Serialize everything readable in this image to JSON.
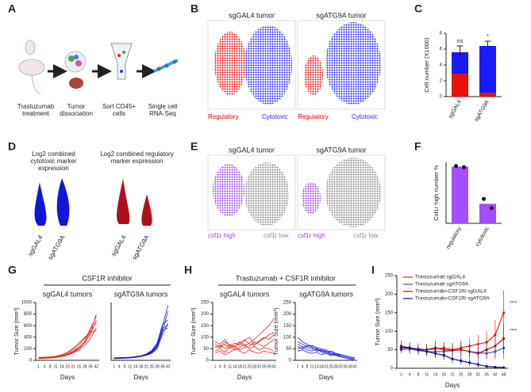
{
  "panel_letters": [
    "A",
    "B",
    "C",
    "D",
    "E",
    "F",
    "G",
    "H",
    "I"
  ],
  "schematic": {
    "steps": [
      "Trastuzumab treatment",
      "Tumor dissociation",
      "Sort CD45+ cells",
      "Single cell RNA-Seq"
    ]
  },
  "tsne_b": {
    "titles": [
      "sgGAL4 tumor",
      "sgATG9A tumor"
    ],
    "labels": [
      "Regulatory",
      "Cytotoxic"
    ]
  },
  "violins": {
    "titles": [
      "Log2 combined cytotoxic marker expression",
      "Log2 combined regulatory marker expression"
    ],
    "categories": [
      "sgGAL4",
      "sgATG9A"
    ]
  },
  "tsne_e": {
    "titles": [
      "sgGAL4 tumor",
      "sgATG9A tumor"
    ],
    "labels": [
      "csf1r high",
      "csf1r low"
    ]
  },
  "group_titles": [
    "CSF1R inhibitor",
    "Trastuzumab + CSF1R inhibitor"
  ],
  "chart_data": [
    {
      "type": "stacked_bar",
      "ylabel": "Cell number (X1000)",
      "categories": [
        "sgGAL4",
        "sgATG9A"
      ],
      "series": [
        {
          "color": "#e8120c",
          "values": [
            2.9,
            0.5
          ]
        },
        {
          "color": "#1a1aff",
          "values": [
            2.7,
            5.9
          ]
        }
      ],
      "errors": [
        0.8,
        0.6
      ],
      "annotations": [
        "ns",
        "*"
      ],
      "ylim": [
        0,
        8
      ],
      "yticks": [
        0,
        2,
        4,
        6,
        8
      ]
    },
    {
      "type": "bar",
      "ylabel": "Csf1r high  number %",
      "categories": [
        "regulatory",
        "cytotoxic"
      ],
      "values": [
        93,
        32
      ],
      "points": [
        [
          94,
          92
        ],
        [
          40,
          25
        ]
      ],
      "color": "#a64dff",
      "ylim": [
        0,
        100
      ]
    },
    {
      "type": "line",
      "title": "sgGAL4 tumors",
      "ylabel": "Tumor Size (mm³)",
      "xlabel": "Days",
      "categories": [
        "1",
        "4",
        "8",
        "11",
        "14",
        "18",
        "21",
        "25",
        "28",
        "35",
        "42"
      ],
      "ylim": [
        0,
        1000
      ],
      "yticks": [
        0,
        200,
        400,
        600,
        800,
        1000
      ],
      "series": [
        {
          "color": "#e8231c",
          "values": [
            40,
            45,
            50,
            60,
            80,
            110,
            160,
            230,
            320,
            500,
            800
          ]
        },
        {
          "color": "#e8231c",
          "values": [
            35,
            40,
            45,
            55,
            70,
            100,
            140,
            200,
            300,
            450,
            700
          ]
        },
        {
          "color": "#e8231c",
          "values": [
            45,
            50,
            55,
            65,
            90,
            130,
            190,
            270,
            380,
            520,
            650
          ]
        },
        {
          "color": "#e8231c",
          "values": [
            30,
            35,
            40,
            50,
            65,
            90,
            130,
            180,
            260,
            380,
            560
          ]
        },
        {
          "color": "#e8231c",
          "values": [
            50,
            55,
            60,
            70,
            95,
            140,
            210,
            300,
            400,
            480,
            520
          ]
        },
        {
          "color": "#e8231c",
          "values": [
            40,
            42,
            48,
            58,
            75,
            105,
            150,
            220,
            330,
            560,
            760
          ]
        }
      ]
    },
    {
      "type": "line",
      "title": "sgATG9A tumors",
      "xlabel": "Days",
      "categories": [
        "1",
        "4",
        "8",
        "11",
        "14",
        "18",
        "21",
        "25",
        "28",
        "35",
        "42"
      ],
      "ylim": [
        0,
        1000
      ],
      "series": [
        {
          "color": "#2020d0",
          "values": [
            40,
            42,
            45,
            50,
            60,
            75,
            100,
            150,
            260,
            600,
            950
          ]
        },
        {
          "color": "#2020d0",
          "values": [
            35,
            38,
            40,
            45,
            55,
            70,
            90,
            130,
            220,
            500,
            850
          ]
        },
        {
          "color": "#2020d0",
          "values": [
            45,
            48,
            50,
            55,
            65,
            80,
            110,
            170,
            300,
            620,
            700
          ]
        },
        {
          "color": "#2020d0",
          "values": [
            30,
            32,
            35,
            40,
            50,
            65,
            85,
            120,
            200,
            450,
            650
          ]
        },
        {
          "color": "#2020d0",
          "values": [
            40,
            45,
            48,
            52,
            62,
            78,
            105,
            160,
            280,
            560,
            600
          ]
        },
        {
          "color": "#2020d0",
          "values": [
            38,
            40,
            42,
            48,
            58,
            72,
            95,
            140,
            240,
            520,
            560
          ]
        }
      ]
    },
    {
      "type": "line",
      "title": "sgGAL4 tumors",
      "ylabel": "Tumor Size (mm³)",
      "xlabel": "Days",
      "categories": [
        "1",
        "4",
        "8",
        "11",
        "14",
        "18",
        "21",
        "25",
        "28",
        "32",
        "35",
        "39",
        "42"
      ],
      "ylim": [
        0,
        250
      ],
      "yticks": [
        0,
        50,
        100,
        150,
        200,
        250
      ],
      "series": [
        {
          "color": "#e8231c",
          "values": [
            60,
            55,
            70,
            50,
            65,
            80,
            60,
            75,
            90,
            110,
            130,
            150,
            180
          ]
        },
        {
          "color": "#e8231c",
          "values": [
            40,
            50,
            35,
            60,
            45,
            55,
            70,
            50,
            60,
            45,
            55,
            50,
            40
          ]
        },
        {
          "color": "#e8231c",
          "values": [
            80,
            70,
            90,
            60,
            75,
            65,
            85,
            100,
            70,
            80,
            95,
            110,
            120
          ]
        },
        {
          "color": "#e8231c",
          "values": [
            30,
            40,
            25,
            35,
            50,
            40,
            30,
            45,
            35,
            30,
            40,
            35,
            30
          ]
        },
        {
          "color": "#e8231c",
          "values": [
            55,
            65,
            50,
            70,
            60,
            45,
            55,
            60,
            80,
            70,
            60,
            75,
            90
          ]
        },
        {
          "color": "#e8231c",
          "values": [
            70,
            60,
            80,
            65,
            55,
            75,
            90,
            70,
            65,
            85,
            100,
            90,
            110
          ]
        }
      ]
    },
    {
      "type": "line",
      "title": "sgATG9A tumors",
      "ylabel": "Tumor Size (mm³)",
      "xlabel": "Days",
      "categories": [
        "1",
        "4",
        "8",
        "11",
        "14",
        "18",
        "21",
        "25",
        "28",
        "32",
        "35",
        "39",
        "42"
      ],
      "ylim": [
        0,
        250
      ],
      "yticks": [
        0,
        50,
        100,
        150,
        200,
        250
      ],
      "series": [
        {
          "color": "#2020d0",
          "values": [
            70,
            60,
            55,
            50,
            45,
            40,
            35,
            30,
            25,
            20,
            15,
            10,
            5
          ]
        },
        {
          "color": "#2020d0",
          "values": [
            100,
            80,
            70,
            60,
            50,
            45,
            40,
            30,
            20,
            15,
            10,
            5,
            0
          ]
        },
        {
          "color": "#2020d0",
          "values": [
            50,
            55,
            45,
            40,
            50,
            35,
            30,
            25,
            30,
            20,
            15,
            10,
            5
          ]
        },
        {
          "color": "#2020d0",
          "values": [
            60,
            50,
            65,
            55,
            40,
            45,
            35,
            40,
            30,
            25,
            20,
            15,
            10
          ]
        },
        {
          "color": "#2020d0",
          "values": [
            40,
            45,
            35,
            30,
            35,
            25,
            30,
            20,
            25,
            15,
            10,
            5,
            0
          ]
        },
        {
          "color": "#2020d0",
          "values": [
            80,
            70,
            60,
            65,
            55,
            50,
            45,
            35,
            30,
            25,
            20,
            15,
            10
          ]
        }
      ]
    },
    {
      "type": "line",
      "ylabel": "Tumor Size (mm³)",
      "xlabel": "Days",
      "categories": [
        "1",
        "4",
        "8",
        "11",
        "14",
        "18",
        "21",
        "25",
        "28",
        "32",
        "35",
        "42",
        "48"
      ],
      "ylim": [
        0,
        250
      ],
      "yticks": [
        0,
        50,
        100,
        150,
        200,
        250
      ],
      "legend": "top-left",
      "annotations": [
        "****",
        "****"
      ],
      "series": [
        {
          "name": "Trastuzumab sgGAL4",
          "color": "#e8231c",
          "values": [
            55,
            55,
            50,
            50,
            52,
            55,
            50,
            55,
            60,
            65,
            70,
            90,
            150
          ],
          "errors": [
            10,
            12,
            12,
            15,
            15,
            15,
            15,
            20,
            20,
            25,
            30,
            40,
            60
          ]
        },
        {
          "name": "Trastuzumab sgATG9A",
          "color": "#4a4ae8",
          "values": [
            50,
            52,
            48,
            45,
            45,
            45,
            48,
            50,
            45,
            42,
            40,
            45,
            55
          ],
          "errors": [
            10,
            10,
            12,
            12,
            12,
            15,
            15,
            15,
            15,
            15,
            15,
            20,
            30
          ]
        },
        {
          "name": "Trastuzumab+CSF1Ri sgGAL4",
          "color": "#a01010",
          "values": [
            60,
            55,
            52,
            50,
            55,
            50,
            48,
            50,
            45,
            40,
            50,
            60,
            80
          ],
          "errors": [
            15,
            15,
            15,
            15,
            20,
            20,
            20,
            20,
            20,
            20,
            25,
            30,
            40
          ]
        },
        {
          "name": "Trastuzumab+CSF1Ri sgATG9A",
          "color": "#10108a",
          "values": [
            55,
            55,
            50,
            45,
            40,
            35,
            25,
            20,
            15,
            10,
            5,
            3,
            2
          ],
          "errors": [
            10,
            10,
            10,
            12,
            12,
            12,
            10,
            10,
            8,
            8,
            5,
            3,
            2
          ]
        }
      ]
    }
  ]
}
